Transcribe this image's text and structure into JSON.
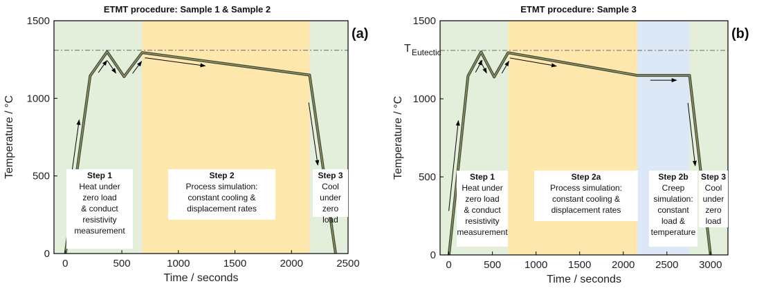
{
  "chart_data": [
    {
      "panel_label": "(a)",
      "type": "line",
      "title": "ETMT procedure: Sample 1 & Sample 2",
      "xlabel": "Time / seconds",
      "ylabel": "Temperature / °C",
      "xlim": [
        -100,
        2500
      ],
      "ylim": [
        0,
        1500
      ],
      "xticks": [
        "0",
        "500",
        "1000",
        "1500",
        "2000",
        "2500"
      ],
      "yticks": [
        "0",
        "500",
        "1000",
        "1500"
      ],
      "reference_line_y": 1310,
      "series": [
        {
          "x": [
            0,
            220,
            370,
            520,
            680,
            2160,
            2390
          ],
          "y": [
            -10,
            1145,
            1300,
            1140,
            1295,
            1150,
            0
          ]
        }
      ],
      "regions": [
        {
          "x0": -100,
          "x1": 680,
          "color": "#e3eedb",
          "title": "Step 1",
          "lines": [
            "Heat under",
            "zero load",
            "& conduct",
            "resistivity",
            "measurement"
          ]
        },
        {
          "x0": 680,
          "x1": 2160,
          "color": "#fde7ad",
          "title": "Step 2",
          "lines": [
            "Process simulation:",
            "constant cooling &",
            "displacement rates"
          ]
        },
        {
          "x0": 2160,
          "x1": 2500,
          "color": "#e3eedb",
          "title": "Step 3",
          "lines": [
            "Cool",
            "under",
            "zero",
            "load"
          ]
        }
      ]
    },
    {
      "panel_label": "(b)",
      "type": "line",
      "title": "ETMT procedure: Sample 3",
      "xlabel": "Time / seconds",
      "ylabel": "Temperature / °C",
      "xlim": [
        -100,
        3200
      ],
      "ylim": [
        0,
        1500
      ],
      "xticks": [
        "0",
        "500",
        "1000",
        "1500",
        "2000",
        "2500",
        "3000"
      ],
      "yticks": [
        "0",
        "500",
        "1000",
        "1500"
      ],
      "reference_line_y": 1310,
      "reference_label": "T",
      "reference_label_sub": "Eutectic",
      "series": [
        {
          "x": [
            0,
            220,
            370,
            520,
            680,
            2160,
            2760,
            3000
          ],
          "y": [
            -10,
            1145,
            1300,
            1140,
            1295,
            1150,
            1150,
            0
          ]
        }
      ],
      "regions": [
        {
          "x0": -100,
          "x1": 680,
          "color": "#e3eedb",
          "title": "Step 1",
          "lines": [
            "Heat under",
            "zero load",
            "& conduct",
            "resistivity",
            "measurement"
          ]
        },
        {
          "x0": 680,
          "x1": 2160,
          "color": "#fde7ad",
          "title": "Step 2a",
          "lines": [
            "Process simulation:",
            "constant cooling &",
            "displacement rates"
          ]
        },
        {
          "x0": 2160,
          "x1": 2760,
          "color": "#dde8f6",
          "title": "Step 2b",
          "lines": [
            "Creep",
            "simulation:",
            "constant",
            "load &",
            "temperature"
          ]
        },
        {
          "x0": 2760,
          "x1": 3200,
          "color": "#e3eedb",
          "title": "Step 3",
          "lines": [
            "Cool",
            "under",
            "zero",
            "load"
          ]
        }
      ]
    }
  ]
}
